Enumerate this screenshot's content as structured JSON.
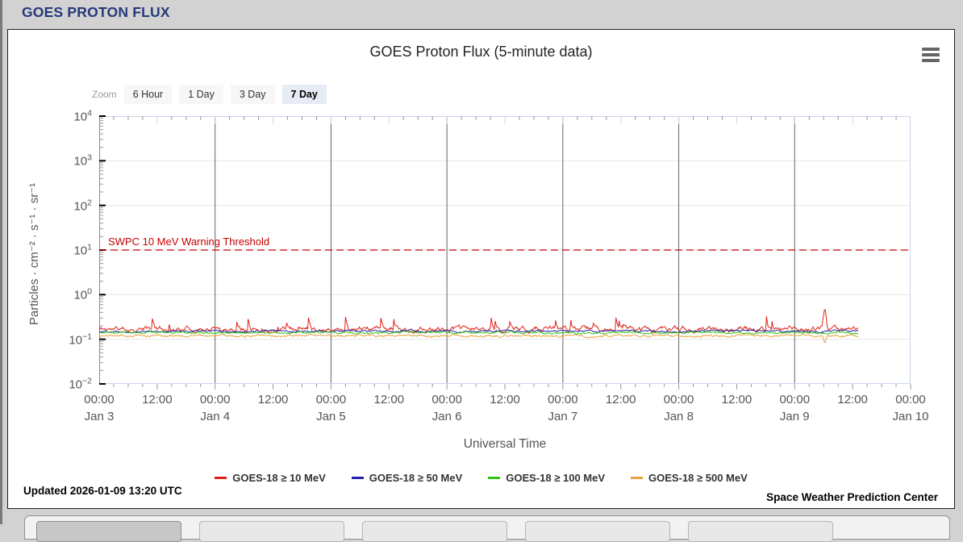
{
  "page": {
    "header_title": "GOES PROTON FLUX",
    "header_color": "#25397a",
    "background_color": "#d2d2d2"
  },
  "chart": {
    "title": "GOES Proton Flux (5-minute data)",
    "range_selector": {
      "zoom_label": "Zoom",
      "buttons": [
        "6 Hour",
        "1 Day",
        "3 Day",
        "7 Day"
      ],
      "selected": "7 Day"
    },
    "context_menu_icon": "hamburger-icon"
  },
  "chart_data": {
    "type": "line",
    "title": "GOES Proton Flux (5-minute data)",
    "xlabel": "Universal Time",
    "ylabel": "Particles · cm⁻² · s⁻¹ · sr⁻¹",
    "y_scale": "log",
    "ylim": [
      0.01,
      10000
    ],
    "y_exponents": [
      4,
      3,
      2,
      1,
      0,
      -1,
      -2
    ],
    "x_days": [
      "Jan 3",
      "Jan 4",
      "Jan 5",
      "Jan 6",
      "Jan 7",
      "Jan 8",
      "Jan 9",
      "Jan 10"
    ],
    "x_time_labels": [
      "00:00",
      "12:00"
    ],
    "days_total": 7,
    "data_start_days": 0,
    "data_end_days": 6.55,
    "grid": {
      "vertical_day_lines": true,
      "horizontal_decade_lines": true
    },
    "legend_position": "bottom-center",
    "threshold": {
      "label": "SWPC 10 MeV Warning Threshold",
      "value": 10,
      "color": "#c80000",
      "style": "dashed"
    },
    "series": [
      {
        "name": "GOES-18 ≥ 10 MeV",
        "color": "#e02318",
        "baseline": 0.17,
        "range": [
          0.115,
          0.46
        ],
        "noise_sigma": 0.13,
        "spiky": true,
        "seed": 11,
        "event_spike": {
          "time_days": 6.26,
          "peak_value": 0.45
        }
      },
      {
        "name": "GOES-18 ≥ 50 MeV",
        "color": "#2323a8",
        "baseline": 0.152,
        "range": [
          0.125,
          0.2
        ],
        "noise_sigma": 0.05,
        "spiky": false,
        "seed": 22
      },
      {
        "name": "GOES-18 ≥ 100 MeV",
        "color": "#30c613",
        "baseline": 0.14,
        "range": [
          0.115,
          0.19
        ],
        "noise_sigma": 0.05,
        "spiky": false,
        "seed": 33
      },
      {
        "name": "GOES-18 ≥ 500 MeV",
        "color": "#e8a33d",
        "baseline": 0.12,
        "range": [
          0.085,
          0.15
        ],
        "noise_sigma": 0.06,
        "spiky": false,
        "seed": 44,
        "event_dip": {
          "time_days": 6.26,
          "low_value": 0.085
        }
      }
    ]
  },
  "footer": {
    "updated": "Updated 2026-01-09 13:20 UTC",
    "credit": "Space Weather Prediction Center"
  },
  "bottom_bar": {
    "buttons": 5,
    "selected_index": 0
  }
}
